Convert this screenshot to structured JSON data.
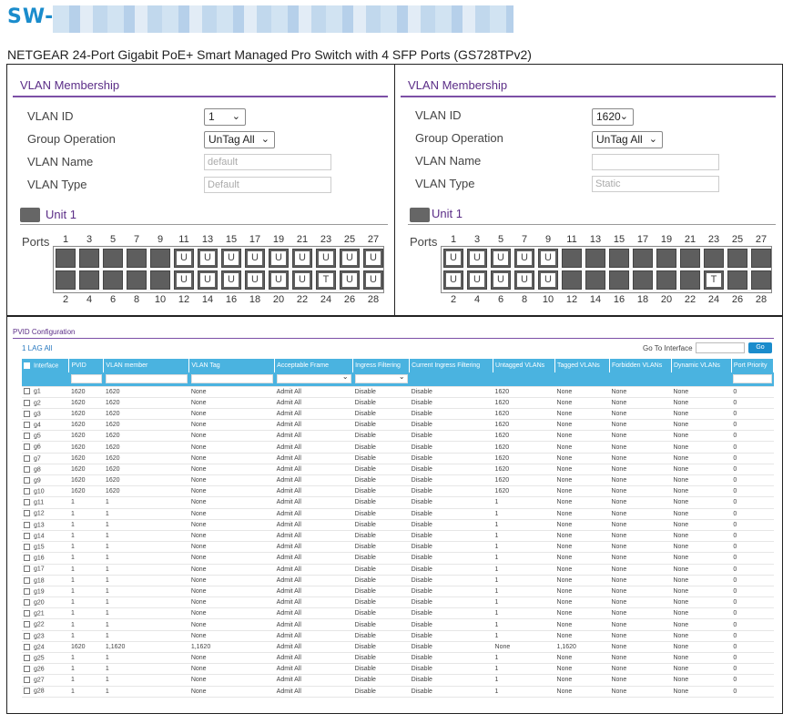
{
  "header": {
    "title": "SW-",
    "subtitle": "NETGEAR 24-Port Gigabit PoE+ Smart Managed Pro Switch with 4 SFP Ports (GS728TPv2)"
  },
  "left": {
    "section_title": "VLAN Membership",
    "vlan_id_label": "VLAN ID",
    "vlan_id_value": "1",
    "group_op_label": "Group Operation",
    "group_op_value": "UnTag All",
    "vlan_name_label": "VLAN Name",
    "vlan_name_value": "default",
    "vlan_type_label": "VLAN Type",
    "vlan_type_value": "Default",
    "unit_label": "Unit 1",
    "ports_label": "Ports",
    "top_row": [
      "",
      "",
      "",
      "",
      "",
      "U",
      "U",
      "U",
      "U",
      "U",
      "U",
      "U",
      "U",
      "U"
    ],
    "bottom_row": [
      "",
      "",
      "",
      "",
      "",
      "U",
      "U",
      "U",
      "U",
      "U",
      "U",
      "T",
      "U",
      "U"
    ]
  },
  "right": {
    "section_title": "VLAN Membership",
    "vlan_id_label": "VLAN ID",
    "vlan_id_value": "1620",
    "group_op_label": "Group Operation",
    "group_op_value": "UnTag All",
    "vlan_name_label": "VLAN Name",
    "vlan_name_value": "",
    "vlan_type_label": "VLAN Type",
    "vlan_type_value": "Static",
    "unit_label": "Unit 1",
    "ports_label": "Ports",
    "top_row": [
      "U",
      "U",
      "U",
      "U",
      "U",
      "",
      "",
      "",
      "",
      "",
      "",
      "",
      "",
      ""
    ],
    "bottom_row": [
      "U",
      "U",
      "U",
      "U",
      "U",
      "",
      "",
      "",
      "",
      "",
      "",
      "T",
      "",
      ""
    ]
  },
  "port_numbers_top": [
    "1",
    "3",
    "5",
    "7",
    "9",
    "11",
    "13",
    "15",
    "17",
    "19",
    "21",
    "23",
    "25",
    "27"
  ],
  "port_numbers_bottom": [
    "2",
    "4",
    "6",
    "8",
    "10",
    "12",
    "14",
    "16",
    "18",
    "20",
    "22",
    "24",
    "26",
    "28"
  ],
  "pvid": {
    "section_title": "PVID Configuration",
    "lag_all": "1 LAG All",
    "goto_label": "Go To Interface",
    "go_button": "Go",
    "columns": [
      "Interface",
      "PVID",
      "VLAN member",
      "VLAN Tag",
      "Acceptable Frame",
      "Ingress Filtering",
      "Current Ingress Filtering",
      "Untagged VLANs",
      "Tagged VLANs",
      "Forbidden VLANs",
      "Dynamic VLANs",
      "Port Priority"
    ],
    "rows": [
      [
        "g1",
        "1620",
        "1620",
        "None",
        "Admit All",
        "Disable",
        "Disable",
        "1620",
        "None",
        "None",
        "None",
        "0"
      ],
      [
        "g2",
        "1620",
        "1620",
        "None",
        "Admit All",
        "Disable",
        "Disable",
        "1620",
        "None",
        "None",
        "None",
        "0"
      ],
      [
        "g3",
        "1620",
        "1620",
        "None",
        "Admit All",
        "Disable",
        "Disable",
        "1620",
        "None",
        "None",
        "None",
        "0"
      ],
      [
        "g4",
        "1620",
        "1620",
        "None",
        "Admit All",
        "Disable",
        "Disable",
        "1620",
        "None",
        "None",
        "None",
        "0"
      ],
      [
        "g5",
        "1620",
        "1620",
        "None",
        "Admit All",
        "Disable",
        "Disable",
        "1620",
        "None",
        "None",
        "None",
        "0"
      ],
      [
        "g6",
        "1620",
        "1620",
        "None",
        "Admit All",
        "Disable",
        "Disable",
        "1620",
        "None",
        "None",
        "None",
        "0"
      ],
      [
        "g7",
        "1620",
        "1620",
        "None",
        "Admit All",
        "Disable",
        "Disable",
        "1620",
        "None",
        "None",
        "None",
        "0"
      ],
      [
        "g8",
        "1620",
        "1620",
        "None",
        "Admit All",
        "Disable",
        "Disable",
        "1620",
        "None",
        "None",
        "None",
        "0"
      ],
      [
        "g9",
        "1620",
        "1620",
        "None",
        "Admit All",
        "Disable",
        "Disable",
        "1620",
        "None",
        "None",
        "None",
        "0"
      ],
      [
        "g10",
        "1620",
        "1620",
        "None",
        "Admit All",
        "Disable",
        "Disable",
        "1620",
        "None",
        "None",
        "None",
        "0"
      ],
      [
        "g11",
        "1",
        "1",
        "None",
        "Admit All",
        "Disable",
        "Disable",
        "1",
        "None",
        "None",
        "None",
        "0"
      ],
      [
        "g12",
        "1",
        "1",
        "None",
        "Admit All",
        "Disable",
        "Disable",
        "1",
        "None",
        "None",
        "None",
        "0"
      ],
      [
        "g13",
        "1",
        "1",
        "None",
        "Admit All",
        "Disable",
        "Disable",
        "1",
        "None",
        "None",
        "None",
        "0"
      ],
      [
        "g14",
        "1",
        "1",
        "None",
        "Admit All",
        "Disable",
        "Disable",
        "1",
        "None",
        "None",
        "None",
        "0"
      ],
      [
        "g15",
        "1",
        "1",
        "None",
        "Admit All",
        "Disable",
        "Disable",
        "1",
        "None",
        "None",
        "None",
        "0"
      ],
      [
        "g16",
        "1",
        "1",
        "None",
        "Admit All",
        "Disable",
        "Disable",
        "1",
        "None",
        "None",
        "None",
        "0"
      ],
      [
        "g17",
        "1",
        "1",
        "None",
        "Admit All",
        "Disable",
        "Disable",
        "1",
        "None",
        "None",
        "None",
        "0"
      ],
      [
        "g18",
        "1",
        "1",
        "None",
        "Admit All",
        "Disable",
        "Disable",
        "1",
        "None",
        "None",
        "None",
        "0"
      ],
      [
        "g19",
        "1",
        "1",
        "None",
        "Admit All",
        "Disable",
        "Disable",
        "1",
        "None",
        "None",
        "None",
        "0"
      ],
      [
        "g20",
        "1",
        "1",
        "None",
        "Admit All",
        "Disable",
        "Disable",
        "1",
        "None",
        "None",
        "None",
        "0"
      ],
      [
        "g21",
        "1",
        "1",
        "None",
        "Admit All",
        "Disable",
        "Disable",
        "1",
        "None",
        "None",
        "None",
        "0"
      ],
      [
        "g22",
        "1",
        "1",
        "None",
        "Admit All",
        "Disable",
        "Disable",
        "1",
        "None",
        "None",
        "None",
        "0"
      ],
      [
        "g23",
        "1",
        "1",
        "None",
        "Admit All",
        "Disable",
        "Disable",
        "1",
        "None",
        "None",
        "None",
        "0"
      ],
      [
        "g24",
        "1620",
        "1,1620",
        "1,1620",
        "Admit All",
        "Disable",
        "Disable",
        "None",
        "1,1620",
        "None",
        "None",
        "0"
      ],
      [
        "g25",
        "1",
        "1",
        "None",
        "Admit All",
        "Disable",
        "Disable",
        "1",
        "None",
        "None",
        "None",
        "0"
      ],
      [
        "g26",
        "1",
        "1",
        "None",
        "Admit All",
        "Disable",
        "Disable",
        "1",
        "None",
        "None",
        "None",
        "0"
      ],
      [
        "g27",
        "1",
        "1",
        "None",
        "Admit All",
        "Disable",
        "Disable",
        "1",
        "None",
        "None",
        "None",
        "0"
      ],
      [
        "g28",
        "1",
        "1",
        "None",
        "Admit All",
        "Disable",
        "Disable",
        "1",
        "None",
        "None",
        "None",
        "0"
      ]
    ]
  }
}
